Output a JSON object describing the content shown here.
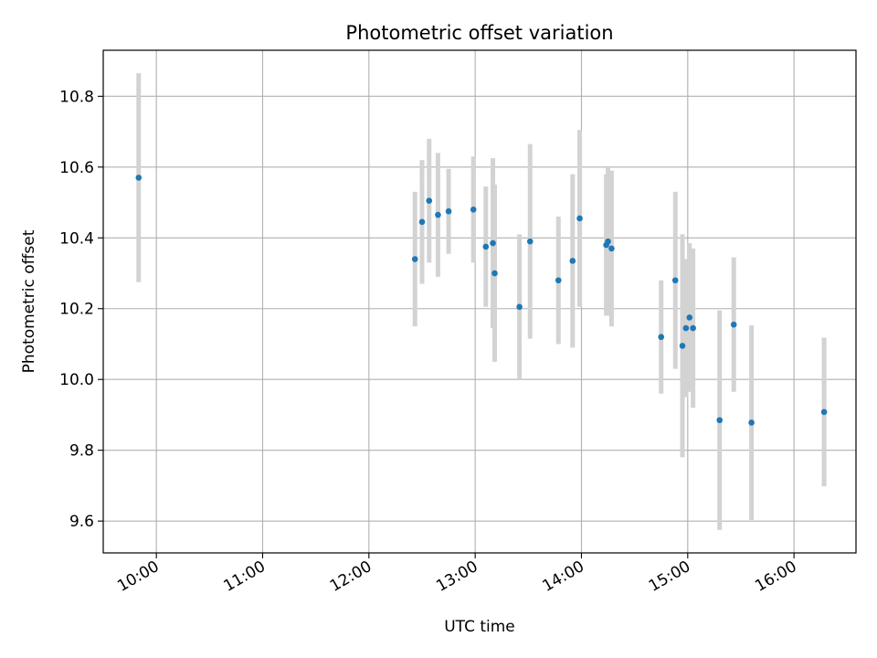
{
  "chart_data": {
    "type": "scatter",
    "title": "Photometric offset variation",
    "xlabel": "UTC time",
    "ylabel": "Photometric offset",
    "x_unit": "hour",
    "xlim": [
      "09:30",
      "16:35"
    ],
    "ylim": [
      9.51,
      10.93
    ],
    "x_ticks": [
      "10:00",
      "11:00",
      "12:00",
      "13:00",
      "14:00",
      "15:00",
      "16:00"
    ],
    "y_ticks": [
      "9.6",
      "9.8",
      "10.0",
      "10.2",
      "10.4",
      "10.6",
      "10.8"
    ],
    "grid": true,
    "legend": "none",
    "point_color": "#1f77b4",
    "errorbar_color": "#d3d3d3",
    "points": [
      {
        "x": "09:50",
        "y": 10.57,
        "err": 0.295
      },
      {
        "x": "12:26",
        "y": 10.34,
        "err": 0.19
      },
      {
        "x": "12:30",
        "y": 10.445,
        "err": 0.175
      },
      {
        "x": "12:34",
        "y": 10.505,
        "err": 0.175
      },
      {
        "x": "12:39",
        "y": 10.465,
        "err": 0.175
      },
      {
        "x": "12:45",
        "y": 10.475,
        "err": 0.12
      },
      {
        "x": "12:59",
        "y": 10.48,
        "err": 0.15
      },
      {
        "x": "13:06",
        "y": 10.375,
        "err": 0.17
      },
      {
        "x": "13:10",
        "y": 10.385,
        "err": 0.24
      },
      {
        "x": "13:11",
        "y": 10.3,
        "err": 0.25
      },
      {
        "x": "13:25",
        "y": 10.205,
        "err": 0.205
      },
      {
        "x": "13:31",
        "y": 10.39,
        "err": 0.275
      },
      {
        "x": "13:47",
        "y": 10.28,
        "err": 0.18
      },
      {
        "x": "13:55",
        "y": 10.335,
        "err": 0.245
      },
      {
        "x": "13:59",
        "y": 10.455,
        "err": 0.25
      },
      {
        "x": "14:14",
        "y": 10.38,
        "err": 0.2
      },
      {
        "x": "14:15",
        "y": 10.39,
        "err": 0.21
      },
      {
        "x": "14:17",
        "y": 10.37,
        "err": 0.22
      },
      {
        "x": "14:45",
        "y": 10.12,
        "err": 0.16
      },
      {
        "x": "14:53",
        "y": 10.28,
        "err": 0.25
      },
      {
        "x": "14:57",
        "y": 10.095,
        "err": 0.315
      },
      {
        "x": "14:59",
        "y": 10.145,
        "err": 0.195
      },
      {
        "x": "15:01",
        "y": 10.175,
        "err": 0.21
      },
      {
        "x": "15:03",
        "y": 10.145,
        "err": 0.225
      },
      {
        "x": "15:18",
        "y": 9.885,
        "err": 0.31
      },
      {
        "x": "15:26",
        "y": 10.155,
        "err": 0.19
      },
      {
        "x": "15:36",
        "y": 9.878,
        "err": 0.275
      },
      {
        "x": "16:17",
        "y": 9.908,
        "err": 0.21
      }
    ]
  }
}
